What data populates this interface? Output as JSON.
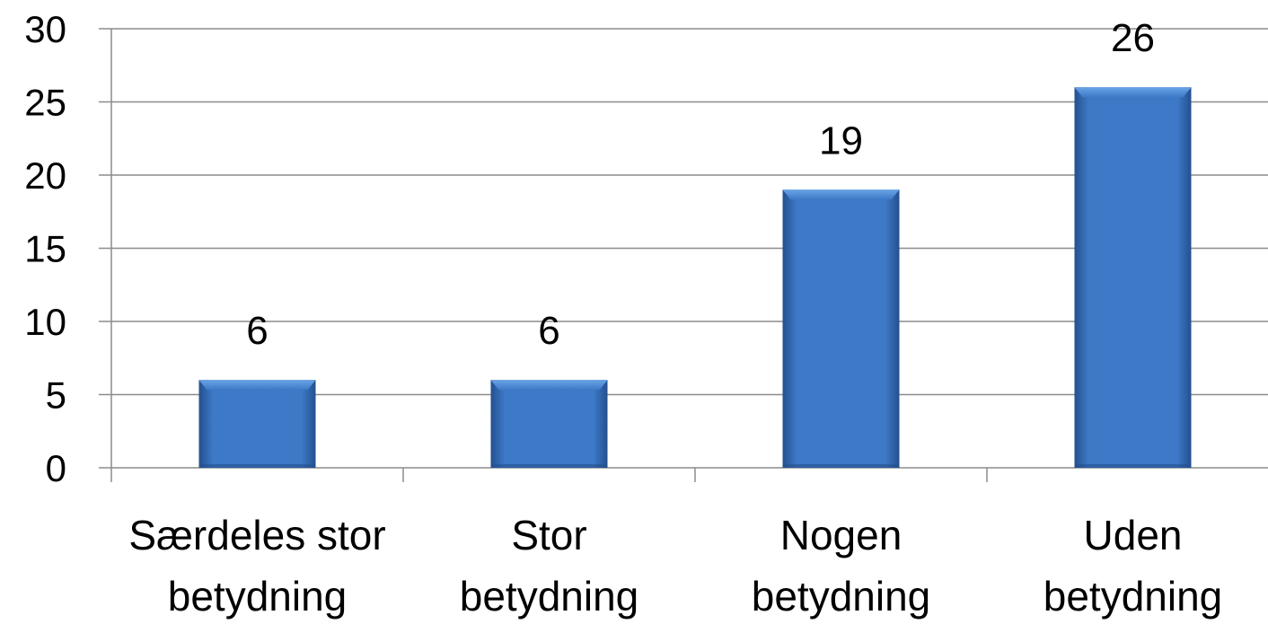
{
  "chart_data": {
    "type": "bar",
    "title": "",
    "xlabel": "",
    "ylabel": "",
    "categories": [
      [
        "Særdeles stor",
        "betydning"
      ],
      [
        "Stor",
        "betydning"
      ],
      [
        "Nogen",
        "betydning"
      ],
      [
        "Uden",
        "betydning"
      ]
    ],
    "values": [
      6,
      6,
      19,
      26
    ],
    "data_labels": [
      "6",
      "6",
      "19",
      "26"
    ],
    "ylim": [
      0,
      30
    ],
    "yticks": [
      0,
      5,
      10,
      15,
      20,
      25,
      30
    ],
    "ytick_labels": [
      "0",
      "5",
      "10",
      "15",
      "20",
      "25",
      "30"
    ],
    "grid": true,
    "legend": "none",
    "colors": {
      "bar": "#3d79c6",
      "bar_light": "#6aa4e6",
      "bar_dark": "#24508e",
      "grid": "#8c8c8c",
      "axis": "#8c8c8c"
    }
  }
}
